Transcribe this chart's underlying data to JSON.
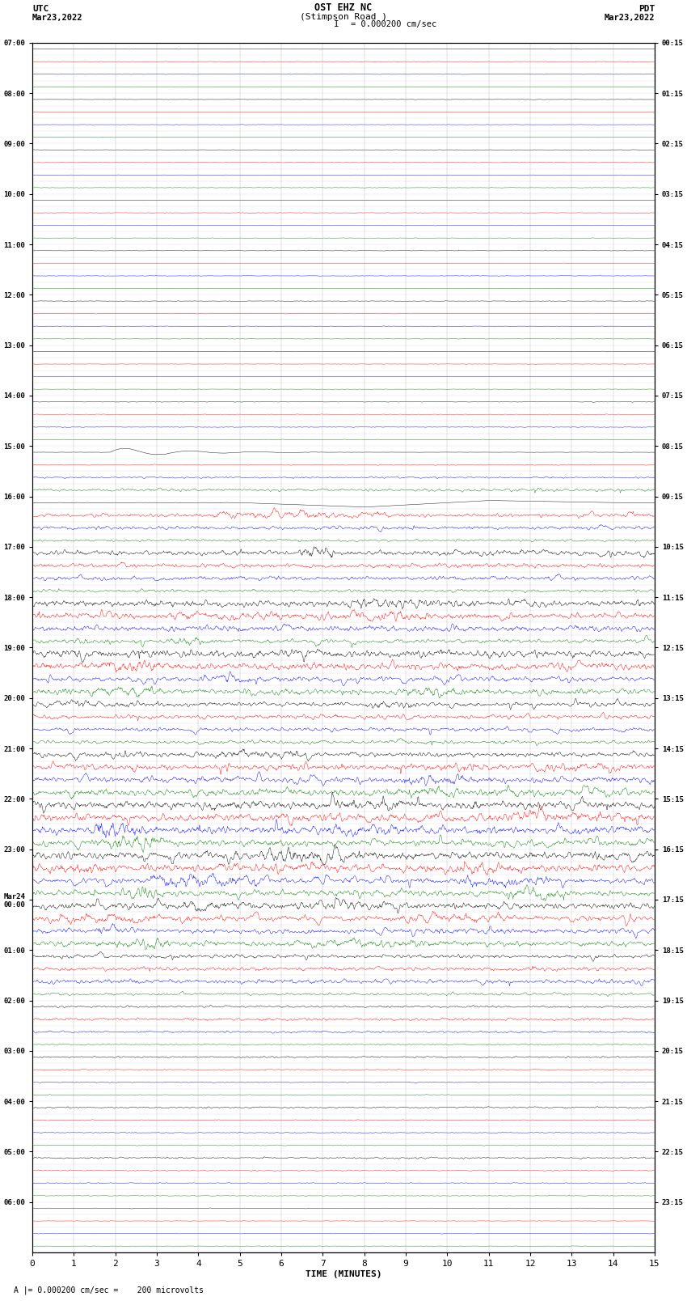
{
  "title_line1": "OST EHZ NC",
  "title_line2": "(Stimpson Road )",
  "title_line3": "I = 0.000200 cm/sec",
  "utc_label": "UTC",
  "utc_date": "Mar23,2022",
  "pdt_label": "PDT",
  "pdt_date": "Mar23,2022",
  "xlabel": "TIME (MINUTES)",
  "footer": "A |= 0.000200 cm/sec =    200 microvolts",
  "bg_color": "#ffffff",
  "trace_colors": [
    "black",
    "red",
    "blue",
    "green"
  ],
  "utc_hour_labels": [
    "07:00",
    "08:00",
    "09:00",
    "10:00",
    "11:00",
    "12:00",
    "13:00",
    "14:00",
    "15:00",
    "16:00",
    "17:00",
    "18:00",
    "19:00",
    "20:00",
    "21:00",
    "22:00",
    "23:00",
    "Mar24\n00:00",
    "01:00",
    "02:00",
    "03:00",
    "04:00",
    "05:00",
    "06:00"
  ],
  "pdt_hour_labels": [
    "00:15",
    "01:15",
    "02:15",
    "03:15",
    "04:15",
    "05:15",
    "06:15",
    "07:15",
    "08:15",
    "09:15",
    "10:15",
    "11:15",
    "12:15",
    "13:15",
    "14:15",
    "15:15",
    "16:15",
    "17:15",
    "18:15",
    "19:15",
    "20:15",
    "21:15",
    "22:15",
    "23:15"
  ],
  "n_rows": 96,
  "minutes": 15,
  "row_amplitude_factors": [
    0.05,
    0.05,
    0.05,
    0.05,
    0.05,
    0.05,
    0.05,
    0.05,
    0.05,
    0.05,
    0.05,
    0.05,
    0.05,
    0.05,
    0.05,
    0.05,
    0.05,
    0.05,
    0.05,
    0.05,
    0.05,
    0.05,
    0.05,
    0.05,
    0.05,
    0.05,
    0.05,
    0.05,
    0.08,
    0.08,
    0.08,
    0.08,
    0.12,
    0.12,
    0.2,
    0.35,
    0.5,
    0.55,
    0.4,
    0.3,
    0.6,
    0.5,
    0.45,
    0.4,
    0.8,
    0.7,
    0.65,
    0.6,
    0.9,
    0.85,
    0.7,
    0.6,
    0.55,
    0.5,
    0.5,
    0.45,
    0.6,
    0.75,
    0.8,
    0.85,
    0.9,
    0.95,
    0.95,
    0.9,
    0.85,
    0.85,
    0.8,
    0.8,
    0.75,
    0.7,
    0.65,
    0.6,
    0.5,
    0.45,
    0.5,
    0.45,
    0.3,
    0.3,
    0.25,
    0.15,
    0.18,
    0.12,
    0.12,
    0.1,
    0.18,
    0.12,
    0.12,
    0.1,
    0.22,
    0.14,
    0.12,
    0.1,
    0.08,
    0.06,
    0.06,
    0.05
  ],
  "grid_line_color": "#aaaaaa",
  "vertical_grid_color": "#888888"
}
